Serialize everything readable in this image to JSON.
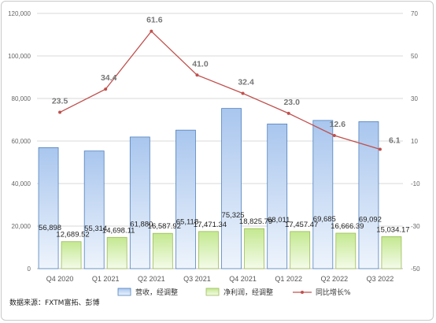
{
  "chart_data": {
    "type": "bar",
    "categories": [
      "Q4 2020",
      "Q1 2021",
      "Q2 2021",
      "Q3 2021",
      "Q4 2021",
      "Q1 2022",
      "Q2 2022",
      "Q3 2022"
    ],
    "series": [
      {
        "name": "营收，经调整",
        "type": "bar",
        "axis": "left",
        "values": [
          56898,
          55314,
          61880,
          65118,
          75325,
          68011,
          69685,
          69092
        ],
        "labels": [
          "56,898",
          "55,314",
          "61,880",
          "65,118",
          "75,325",
          "68,011",
          "69,685",
          "69,092"
        ],
        "color": "#4f81bd"
      },
      {
        "name": "净利润，经调整",
        "type": "bar",
        "axis": "left",
        "values": [
          12689.52,
          14698.11,
          16587.92,
          17471.34,
          18825.79,
          17457.47,
          16666.39,
          15034.17
        ],
        "labels": [
          "12,689.52",
          "14,698.11",
          "16,587.92",
          "17,471.34",
          "18,825.79",
          "17,457.47",
          "16,666.39",
          "15,034.17"
        ],
        "color": "#9bbb59"
      },
      {
        "name": "同比增长%",
        "type": "line",
        "axis": "right",
        "values": [
          23.5,
          34.4,
          61.6,
          41.0,
          32.4,
          23.0,
          12.6,
          6.1
        ],
        "labels": [
          "23.5",
          "34.4",
          "61.6",
          "41.0",
          "32.4",
          "23.0",
          "12.6",
          "6.1"
        ],
        "color": "#c0504d"
      }
    ],
    "y_left": {
      "range": [
        0,
        120000
      ],
      "ticks": [
        0,
        20000,
        40000,
        60000,
        80000,
        100000,
        120000
      ],
      "tick_labels": [
        "0",
        "20,000",
        "40,000",
        "60,000",
        "80,000",
        "100,000",
        "120,000"
      ]
    },
    "y_right": {
      "range": [
        -50,
        70
      ],
      "ticks": [
        -50,
        -30,
        -10,
        10,
        30,
        50,
        70
      ],
      "tick_labels": [
        "-50",
        "-30",
        "-10",
        "10",
        "30",
        "50",
        "70"
      ]
    },
    "grid": true,
    "legend_position": "bottom",
    "source_note": "数据来源：FXTM富拓、彭博"
  }
}
